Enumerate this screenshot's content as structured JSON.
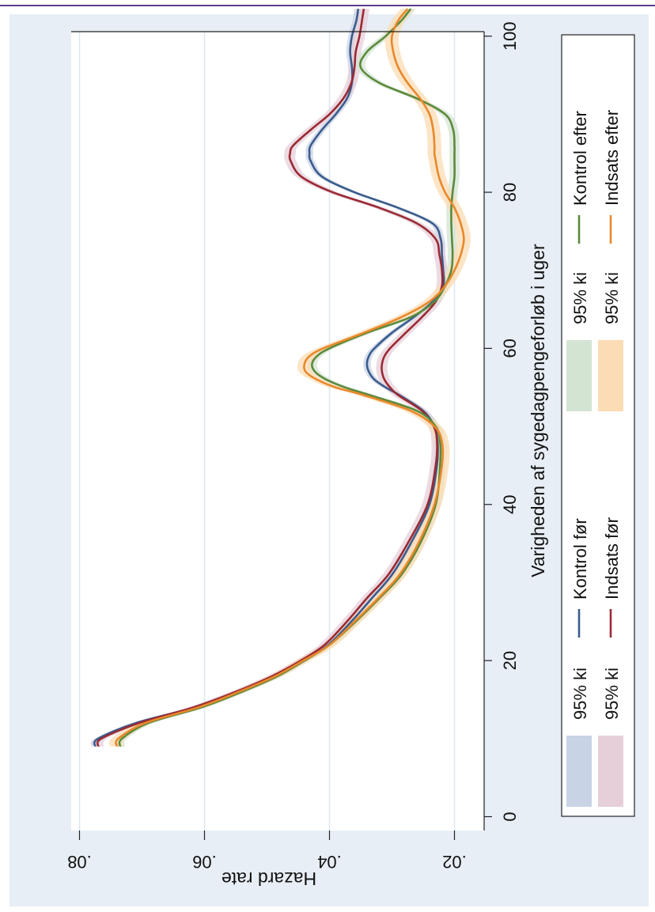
{
  "chart_data": {
    "type": "line",
    "orientation": "rotated-90-clockwise",
    "xlabel": "Varigheden af sygedagpengeforløb i uger",
    "ylabel": "Hazard rate",
    "x_ticks": [
      0,
      20,
      40,
      60,
      80,
      100
    ],
    "x_tick_labels": [
      "0",
      "20",
      "40",
      "60",
      "80",
      "100"
    ],
    "y_ticks": [
      0.02,
      0.04,
      0.06,
      0.08
    ],
    "y_tick_labels": [
      ".02",
      ".04",
      ".06",
      ".08"
    ],
    "xlim": [
      -2,
      104
    ],
    "ylim": [
      0.0175,
      0.0805
    ],
    "grid": true,
    "legend_position": "right",
    "legend": {
      "entries": [
        {
          "kind": "band",
          "color": "#c9d3e6",
          "label": "95% ki"
        },
        {
          "kind": "line",
          "color": "#3a5c8c",
          "label": "Kontrol før"
        },
        {
          "kind": "band",
          "color": "#e6cfd8",
          "label": "95% ki"
        },
        {
          "kind": "line",
          "color": "#9a2a34",
          "label": "Indsats før"
        },
        {
          "kind": "band",
          "color": "#d4e4d3",
          "label": "95% ki"
        },
        {
          "kind": "line",
          "color": "#5b8a3c",
          "label": "Kontrol efter"
        },
        {
          "kind": "band",
          "color": "#fbdcb4",
          "label": "95% ki"
        },
        {
          "kind": "line",
          "color": "#e9882b",
          "label": "Indsats efter"
        }
      ]
    },
    "x": [
      9,
      10,
      12,
      14,
      16,
      18,
      20,
      22,
      25,
      28,
      31,
      35,
      40,
      45,
      48,
      50,
      52,
      54,
      55,
      56,
      57,
      58,
      59,
      60,
      62,
      64,
      66,
      68,
      70,
      72,
      74,
      76,
      78,
      80,
      82,
      84,
      85,
      86,
      88,
      90,
      92,
      94,
      96,
      98,
      100,
      102,
      103.5
    ],
    "series": [
      {
        "name": "Kontrol før",
        "color": "#3a5c8c",
        "band_color": "#c9d3e6",
        "band_width": 0.0006,
        "values": [
          0.0775,
          0.077,
          0.071,
          0.0615,
          0.0545,
          0.0485,
          0.044,
          0.0402,
          0.0365,
          0.0332,
          0.03,
          0.027,
          0.024,
          0.0228,
          0.0227,
          0.0232,
          0.025,
          0.0288,
          0.031,
          0.0328,
          0.0337,
          0.034,
          0.0337,
          0.0328,
          0.03,
          0.0265,
          0.0235,
          0.0218,
          0.0218,
          0.022,
          0.0222,
          0.0235,
          0.029,
          0.036,
          0.0412,
          0.043,
          0.0432,
          0.043,
          0.0412,
          0.039,
          0.0372,
          0.0364,
          0.0364,
          0.0367,
          0.0364,
          0.0357,
          0.0354
        ]
      },
      {
        "name": "Indsats før",
        "color": "#9a2a34",
        "band_color": "#e6cfd8",
        "band_width": 0.0009,
        "values": [
          0.077,
          0.0765,
          0.0705,
          0.0618,
          0.055,
          0.0492,
          0.0446,
          0.0408,
          0.0372,
          0.034,
          0.0306,
          0.0275,
          0.0243,
          0.023,
          0.0228,
          0.0233,
          0.0252,
          0.029,
          0.0303,
          0.0312,
          0.0316,
          0.0316,
          0.0312,
          0.0303,
          0.0278,
          0.0252,
          0.023,
          0.022,
          0.022,
          0.0224,
          0.023,
          0.026,
          0.032,
          0.0395,
          0.0445,
          0.0462,
          0.0463,
          0.0458,
          0.043,
          0.04,
          0.0378,
          0.0365,
          0.036,
          0.0358,
          0.0352,
          0.0348,
          0.0345
        ]
      },
      {
        "name": "Kontrol efter",
        "color": "#5b8a3c",
        "band_color": "#d4e4d3",
        "band_width": 0.0008,
        "values": [
          0.0735,
          0.0732,
          0.069,
          0.0605,
          0.054,
          0.0483,
          0.044,
          0.04,
          0.0358,
          0.032,
          0.0285,
          0.0255,
          0.023,
          0.0223,
          0.0223,
          0.023,
          0.026,
          0.0335,
          0.0375,
          0.0405,
          0.0423,
          0.0428,
          0.042,
          0.04,
          0.034,
          0.027,
          0.0232,
          0.0215,
          0.0205,
          0.0203,
          0.0204,
          0.0205,
          0.0205,
          0.0203,
          0.02,
          0.02,
          0.02,
          0.02,
          0.0202,
          0.0215,
          0.026,
          0.032,
          0.035,
          0.034,
          0.031,
          0.0285,
          0.027
        ]
      },
      {
        "name": "Indsats efter",
        "color": "#e9882b",
        "band_color": "#fbdcb4",
        "band_width": 0.0011,
        "values": [
          0.074,
          0.0738,
          0.0695,
          0.061,
          0.0545,
          0.0487,
          0.0442,
          0.04,
          0.036,
          0.0322,
          0.0288,
          0.0258,
          0.0232,
          0.022,
          0.022,
          0.0232,
          0.027,
          0.0345,
          0.039,
          0.042,
          0.0438,
          0.044,
          0.0432,
          0.041,
          0.0345,
          0.0285,
          0.024,
          0.0215,
          0.02,
          0.019,
          0.0185,
          0.019,
          0.02,
          0.0215,
          0.0225,
          0.023,
          0.0232,
          0.0232,
          0.0234,
          0.024,
          0.0255,
          0.0275,
          0.029,
          0.0298,
          0.03,
          0.029,
          0.0275
        ]
      }
    ]
  }
}
